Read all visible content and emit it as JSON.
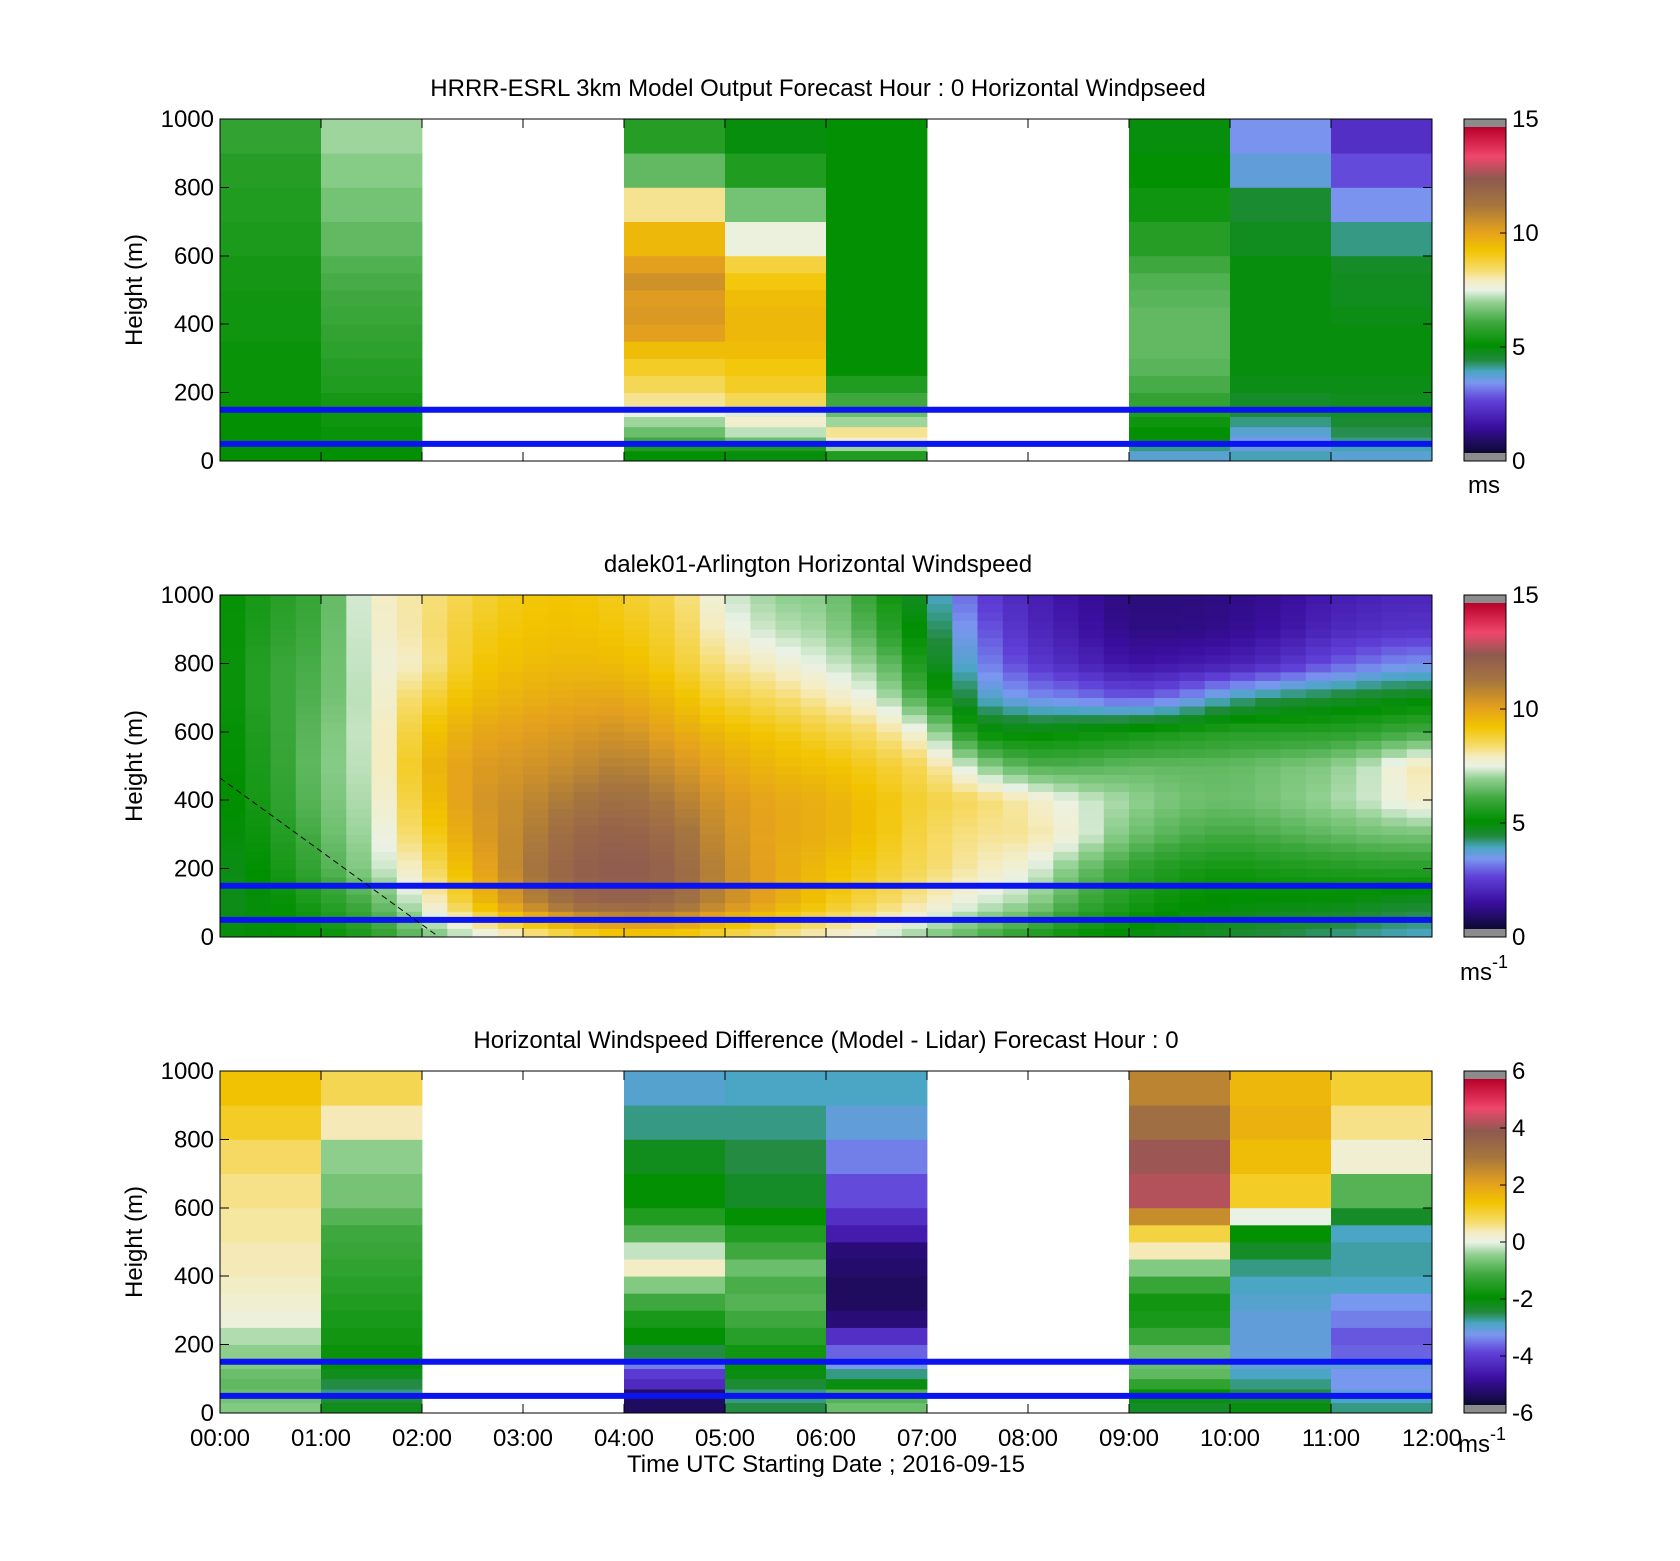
{
  "figure": {
    "xlabel": "Time UTC  Starting Date ; 2016-09-15"
  },
  "chart_data": [
    {
      "type": "heatmap",
      "title": "HRRR-ESRL 3km Model Output   Forecast Hour : 0 Horizontal Windpseed",
      "ylabel": "Height (m)",
      "xlim": [
        0,
        12
      ],
      "ylim": [
        0,
        1000
      ],
      "yticks": [
        "0",
        "200",
        "400",
        "600",
        "800",
        "1000"
      ],
      "colorbar": {
        "range": [
          0,
          15
        ],
        "ticks": [
          "0",
          "5",
          "10",
          "15"
        ],
        "unit": "ms",
        "unit_sup": ""
      },
      "lines_m": [
        150,
        50
      ],
      "x_bin_hours": 1,
      "y_bins_m": [
        30,
        50,
        70,
        100,
        130,
        160,
        200,
        250,
        300,
        350,
        400,
        450,
        500,
        550,
        600,
        700,
        800,
        900,
        1000
      ],
      "columns": [
        {
          "hour": 0,
          "values": [
            5.0,
            5.0,
            5.0,
            5.0,
            5.0,
            5.0,
            5.1,
            5.1,
            5.1,
            5.1,
            5.2,
            5.2,
            5.2,
            5.3,
            5.3,
            5.4,
            5.5,
            5.6,
            5.8
          ]
        },
        {
          "hour": 1,
          "values": [
            5.0,
            5.0,
            5.1,
            5.1,
            5.2,
            5.2,
            5.3,
            5.5,
            5.6,
            5.7,
            5.8,
            5.9,
            6.0,
            6.1,
            6.2,
            6.4,
            6.6,
            6.8,
            7.0
          ]
        },
        {
          "hour": 2,
          "values": null
        },
        {
          "hour": 3,
          "values": null
        },
        {
          "hour": 4,
          "values": [
            5.0,
            5.5,
            6.0,
            6.5,
            7.0,
            7.5,
            8.2,
            8.6,
            9.0,
            9.5,
            10.2,
            10.4,
            10.3,
            10.6,
            10.2,
            9.6,
            8.2,
            6.4,
            5.6
          ]
        },
        {
          "hour": 5,
          "values": [
            4.8,
            5.5,
            6.5,
            7.2,
            7.8,
            7.4,
            8.6,
            9.0,
            9.2,
            9.5,
            9.6,
            9.6,
            9.5,
            9.2,
            8.8,
            7.6,
            6.6,
            5.5,
            4.8
          ]
        },
        {
          "hour": 6,
          "values": [
            5.5,
            7.0,
            7.8,
            8.2,
            7.0,
            6.5,
            6.0,
            5.5,
            5.0,
            5.0,
            5.0,
            5.0,
            5.0,
            5.0,
            5.0,
            5.0,
            5.0,
            5.0,
            5.0
          ]
        },
        {
          "hour": 7,
          "values": null
        },
        {
          "hour": 8,
          "values": null
        },
        {
          "hour": 9,
          "values": [
            3.6,
            4.0,
            4.8,
            5.0,
            5.2,
            5.5,
            5.8,
            6.1,
            6.3,
            6.4,
            6.4,
            6.4,
            6.3,
            6.2,
            6.0,
            5.6,
            5.2,
            5.0,
            4.8
          ]
        },
        {
          "hour": 10,
          "values": [
            3.8,
            3.4,
            3.3,
            3.6,
            4.0,
            4.3,
            4.5,
            4.7,
            4.8,
            4.8,
            4.8,
            4.8,
            4.8,
            4.8,
            4.8,
            4.6,
            4.4,
            3.5,
            3.2
          ]
        },
        {
          "hour": 11,
          "values": [
            3.6,
            3.8,
            4.0,
            4.2,
            4.4,
            4.5,
            4.6,
            4.7,
            4.8,
            4.8,
            4.8,
            4.7,
            4.6,
            4.6,
            4.5,
            4.0,
            3.2,
            2.5,
            2.0
          ]
        }
      ]
    },
    {
      "type": "heatmap",
      "title": "dalek01-Arlington  Horizontal Windspeed",
      "ylabel": "Height (m)",
      "xlim": [
        0,
        12
      ],
      "ylim": [
        0,
        1000
      ],
      "yticks": [
        "0",
        "200",
        "400",
        "600",
        "800",
        "1000"
      ],
      "colorbar": {
        "range": [
          0,
          15
        ],
        "ticks": [
          "0",
          "5",
          "10",
          "15"
        ],
        "unit": "ms",
        "unit_sup": "-1"
      },
      "lines_m": [
        150,
        50
      ],
      "x_bin_hours": 0.25,
      "profile_heights_m": [
        0,
        100,
        200,
        300,
        400,
        500,
        600,
        700,
        800,
        900,
        1000
      ],
      "profiles": [
        {
          "hour": 0.0,
          "values": [
            4.8,
            4.6,
            4.6,
            4.7,
            4.8,
            4.8,
            4.8,
            4.9,
            4.9,
            4.9,
            4.9
          ]
        },
        {
          "hour": 0.5,
          "values": [
            4.9,
            4.9,
            5.1,
            5.3,
            5.5,
            5.6,
            5.7,
            5.8,
            5.8,
            5.6,
            5.5
          ]
        },
        {
          "hour": 1.0,
          "values": [
            5.0,
            5.5,
            6.0,
            6.3,
            6.5,
            6.6,
            6.5,
            6.3,
            6.2,
            6.1,
            6.0
          ]
        },
        {
          "hour": 1.5,
          "values": [
            5.5,
            6.2,
            7.0,
            7.2,
            7.3,
            7.4,
            7.5,
            7.5,
            7.6,
            7.7,
            7.8
          ]
        },
        {
          "hour": 2.0,
          "values": [
            6.5,
            7.5,
            8.2,
            8.8,
            9.2,
            9.5,
            9.2,
            8.7,
            8.0,
            8.2,
            8.2
          ]
        },
        {
          "hour": 2.5,
          "values": [
            7.2,
            9.2,
            9.8,
            10.2,
            10.4,
            10.3,
            10.0,
            9.5,
            9.2,
            9.0,
            8.8
          ]
        },
        {
          "hour": 3.0,
          "values": [
            7.8,
            10.8,
            11.2,
            11.0,
            10.8,
            10.5,
            10.2,
            9.8,
            9.5,
            9.3,
            9.2
          ]
        },
        {
          "hour": 3.5,
          "values": [
            8.5,
            12.0,
            12.3,
            12.0,
            11.4,
            10.8,
            10.4,
            10.0,
            9.6,
            9.4,
            9.3
          ]
        },
        {
          "hour": 4.0,
          "values": [
            9.0,
            12.3,
            12.6,
            12.3,
            11.8,
            11.2,
            10.6,
            10.0,
            9.5,
            9.2,
            9.0
          ]
        },
        {
          "hour": 4.5,
          "values": [
            9.0,
            12.0,
            12.2,
            11.8,
            11.2,
            10.6,
            10.0,
            9.5,
            9.0,
            8.8,
            8.6
          ]
        },
        {
          "hour": 5.0,
          "values": [
            8.6,
            10.8,
            10.8,
            10.6,
            10.4,
            10.0,
            9.5,
            8.8,
            8.2,
            7.7,
            7.4
          ]
        },
        {
          "hour": 5.5,
          "values": [
            8.2,
            10.0,
            10.0,
            10.0,
            10.0,
            9.6,
            9.2,
            8.5,
            7.8,
            7.2,
            6.9
          ]
        },
        {
          "hour": 6.0,
          "values": [
            7.8,
            9.2,
            9.5,
            9.8,
            9.8,
            9.4,
            8.8,
            8.0,
            7.4,
            7.0,
            6.8
          ]
        },
        {
          "hour": 6.5,
          "values": [
            7.4,
            8.6,
            9.0,
            9.3,
            9.3,
            9.0,
            8.4,
            7.5,
            6.8,
            6.0,
            5.6
          ]
        },
        {
          "hour": 7.0,
          "values": [
            6.8,
            8.0,
            8.5,
            8.6,
            8.8,
            8.5,
            7.5,
            5.8,
            5.0,
            4.6,
            4.2
          ]
        },
        {
          "hour": 7.5,
          "values": [
            6.2,
            7.4,
            8.0,
            8.2,
            8.5,
            7.0,
            5.0,
            3.8,
            3.2,
            2.8,
            2.4
          ]
        },
        {
          "hour": 8.0,
          "values": [
            5.5,
            7.0,
            7.6,
            8.2,
            8.0,
            6.2,
            4.8,
            3.2,
            2.3,
            1.9,
            1.7
          ]
        },
        {
          "hour": 8.5,
          "values": [
            5.0,
            6.0,
            6.6,
            7.6,
            7.4,
            6.2,
            5.0,
            3.0,
            1.8,
            1.4,
            1.2
          ]
        },
        {
          "hour": 9.0,
          "values": [
            4.8,
            5.4,
            5.8,
            6.6,
            7.0,
            6.4,
            5.2,
            2.6,
            1.3,
            0.9,
            0.8
          ]
        },
        {
          "hour": 9.5,
          "values": [
            4.6,
            5.0,
            5.4,
            6.2,
            6.6,
            6.4,
            5.4,
            3.0,
            1.4,
            0.9,
            0.8
          ]
        },
        {
          "hour": 10.0,
          "values": [
            4.4,
            4.9,
            5.2,
            6.0,
            6.5,
            6.4,
            5.6,
            3.8,
            1.6,
            1.0,
            0.9
          ]
        },
        {
          "hour": 10.5,
          "values": [
            4.2,
            4.8,
            5.4,
            6.2,
            6.7,
            6.6,
            5.6,
            4.2,
            2.0,
            1.3,
            1.1
          ]
        },
        {
          "hour": 11.0,
          "values": [
            4.0,
            4.8,
            5.5,
            6.4,
            7.0,
            6.8,
            5.6,
            4.4,
            2.6,
            1.8,
            1.5
          ]
        },
        {
          "hour": 11.5,
          "values": [
            3.8,
            4.6,
            5.6,
            6.6,
            7.4,
            7.4,
            5.8,
            4.6,
            3.0,
            2.0,
            1.7
          ]
        },
        {
          "hour": 11.75,
          "values": [
            3.7,
            4.5,
            5.6,
            6.6,
            7.8,
            8.0,
            6.0,
            4.7,
            3.2,
            2.1,
            1.8
          ]
        }
      ]
    },
    {
      "type": "heatmap",
      "title": "Horizontal Windspeed Difference (Model - Lidar) Forecast Hour : 0",
      "ylabel": "Height (m)",
      "xlabel": "Time UTC  Starting Date ; 2016-09-15",
      "xlim": [
        0,
        12
      ],
      "ylim": [
        0,
        1000
      ],
      "yticks": [
        "0",
        "200",
        "400",
        "600",
        "800",
        "1000"
      ],
      "xticks": [
        "00:00",
        "01:00",
        "02:00",
        "03:00",
        "04:00",
        "05:00",
        "06:00",
        "07:00",
        "08:00",
        "09:00",
        "10:00",
        "11:00",
        "12:00"
      ],
      "colorbar": {
        "range": [
          -6,
          6
        ],
        "ticks": [
          "-6",
          "-4",
          "-2",
          "0",
          "2",
          "4",
          "6"
        ],
        "unit": "ms",
        "unit_sup": "-1"
      },
      "lines_m": [
        150,
        50
      ],
      "x_bin_hours": 1,
      "y_bins_m": [
        30,
        50,
        70,
        100,
        130,
        160,
        200,
        250,
        300,
        350,
        400,
        450,
        500,
        550,
        600,
        700,
        800,
        900,
        1000
      ],
      "columns": [
        {
          "hour": 0,
          "values": [
            -0.6,
            -0.7,
            -0.8,
            -0.9,
            -0.8,
            -0.6,
            -0.5,
            -0.3,
            0.1,
            0.2,
            0.3,
            0.4,
            0.4,
            0.5,
            0.5,
            0.6,
            0.8,
            1.2,
            1.5
          ]
        },
        {
          "hour": 1,
          "values": [
            -2.3,
            -2.5,
            -2.8,
            -2.6,
            -2.3,
            -2.0,
            -1.9,
            -1.8,
            -1.7,
            -1.6,
            -1.5,
            -1.4,
            -1.3,
            -1.2,
            -1.0,
            -0.7,
            -0.5,
            0.4,
            0.9
          ]
        },
        {
          "hour": 2,
          "values": null
        },
        {
          "hour": 3,
          "values": null
        },
        {
          "hour": 4,
          "values": [
            -5.6,
            -5.6,
            -5.5,
            -4.5,
            -4.2,
            -3.6,
            -2.6,
            -2.0,
            -1.7,
            -1.2,
            -0.6,
            0.3,
            -0.2,
            -1.0,
            -1.6,
            -2.0,
            -2.3,
            -2.8,
            -3.1
          ]
        },
        {
          "hour": 5,
          "values": [
            -2.6,
            -2.8,
            -2.8,
            -2.5,
            -2.2,
            -2.0,
            -1.8,
            -1.5,
            -1.2,
            -1.0,
            -1.1,
            -0.8,
            -1.2,
            -1.6,
            -2.0,
            -2.4,
            -2.6,
            -2.8,
            -3.0
          ]
        },
        {
          "hour": 6,
          "values": [
            -0.8,
            -1.0,
            -1.0,
            -2.2,
            -2.8,
            -3.4,
            -3.8,
            -4.4,
            -5.4,
            -5.6,
            -5.6,
            -5.5,
            -5.4,
            -4.8,
            -4.4,
            -4.0,
            -3.6,
            -3.2,
            -3.0
          ]
        },
        {
          "hour": 7,
          "values": null
        },
        {
          "hour": 8,
          "values": null
        },
        {
          "hour": 9,
          "values": [
            -2.4,
            -2.2,
            -2.0,
            -1.4,
            -0.9,
            -0.8,
            -0.8,
            -1.3,
            -1.7,
            -1.8,
            -1.3,
            -0.6,
            0.4,
            1.0,
            2.6,
            4.4,
            4.2,
            3.4,
            2.8
          ]
        },
        {
          "hour": 10,
          "values": [
            -2.2,
            -2.4,
            -2.6,
            -2.8,
            -3.0,
            -3.2,
            -3.2,
            -3.2,
            -3.2,
            -3.1,
            -3.0,
            -2.8,
            -2.4,
            -2.0,
            0.0,
            1.2,
            1.6,
            1.8,
            1.7
          ]
        },
        {
          "hour": 11,
          "values": [
            -2.8,
            -3.0,
            -3.2,
            -3.4,
            -3.4,
            -3.2,
            -3.8,
            -3.9,
            -3.6,
            -3.4,
            -3.0,
            -2.9,
            -2.9,
            -3.0,
            -2.4,
            -1.0,
            0.2,
            0.6,
            1.1
          ]
        }
      ]
    }
  ]
}
